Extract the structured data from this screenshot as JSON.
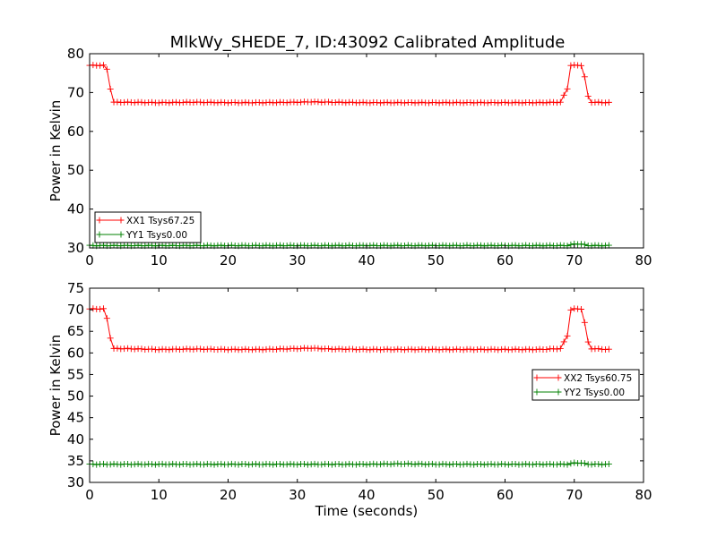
{
  "title": "MlkWy_SHEDE_7, ID:43092 Calibrated Amplitude",
  "xlabel": "Time (seconds)",
  "ylabel": "Power in Kelvin",
  "chart_data": [
    {
      "type": "line",
      "ylabel": "Power in Kelvin",
      "xlabel": "",
      "xlim": [
        0,
        80
      ],
      "ylim": [
        30,
        80
      ],
      "xticks": [
        "0",
        "10",
        "20",
        "30",
        "40",
        "50",
        "60",
        "70",
        "80"
      ],
      "yticks": [
        "30",
        "40",
        "50",
        "60",
        "70",
        "80"
      ],
      "grid": false,
      "legend_position": "lower-left",
      "series": [
        {
          "name": "XX1 Tsys67.25",
          "color": "#ff0000",
          "marker": "+",
          "x": [
            0,
            0.5,
            1,
            1.5,
            2,
            2.5,
            3,
            3.5,
            5,
            10,
            15,
            20,
            25,
            30,
            32,
            35,
            40,
            45,
            50,
            55,
            60,
            65,
            68,
            69,
            69.5,
            70,
            70.5,
            71,
            71.5,
            72,
            72.5,
            75
          ],
          "y": [
            77,
            77,
            77,
            77,
            77,
            76,
            71,
            67.5,
            67.5,
            67.4,
            67.5,
            67.4,
            67.4,
            67.5,
            67.6,
            67.5,
            67.4,
            67.4,
            67.4,
            67.4,
            67.4,
            67.4,
            67.5,
            71,
            77,
            77,
            77,
            77,
            74,
            69,
            67.5,
            67.4
          ]
        },
        {
          "name": "YY1 Tsys0.00",
          "color": "#008000",
          "marker": "+",
          "x": [
            0,
            5,
            10,
            15,
            20,
            25,
            30,
            35,
            40,
            45,
            50,
            55,
            60,
            65,
            69,
            70,
            71,
            72,
            75
          ],
          "y": [
            30.6,
            30.6,
            30.6,
            30.6,
            30.6,
            30.6,
            30.6,
            30.6,
            30.6,
            30.6,
            30.6,
            30.6,
            30.6,
            30.6,
            30.6,
            31.0,
            31.0,
            30.6,
            30.6
          ]
        }
      ]
    },
    {
      "type": "line",
      "ylabel": "Power in Kelvin",
      "xlabel": "Time (seconds)",
      "xlim": [
        0,
        80
      ],
      "ylim": [
        30,
        75
      ],
      "xticks": [
        "0",
        "10",
        "20",
        "30",
        "40",
        "50",
        "60",
        "70",
        "80"
      ],
      "yticks": [
        "30",
        "35",
        "40",
        "45",
        "50",
        "55",
        "60",
        "65",
        "70",
        "75"
      ],
      "grid": false,
      "legend_position": "center-right",
      "series": [
        {
          "name": "XX2 Tsys60.75",
          "color": "#ff0000",
          "marker": "+",
          "x": [
            0,
            0.5,
            1,
            1.5,
            2,
            2.5,
            3,
            3.5,
            5,
            10,
            15,
            20,
            25,
            30,
            32,
            35,
            40,
            45,
            50,
            55,
            60,
            65,
            68,
            69,
            69.5,
            70,
            70.5,
            71,
            71.5,
            72,
            72.5,
            75
          ],
          "y": [
            70.2,
            70.2,
            70.2,
            70.2,
            70.2,
            68,
            63.5,
            61,
            61,
            60.8,
            60.9,
            60.8,
            60.8,
            61,
            61.1,
            60.9,
            60.8,
            60.8,
            60.8,
            60.8,
            60.8,
            60.8,
            61,
            64,
            70,
            70.2,
            70.2,
            70.2,
            67,
            62.5,
            61,
            60.8
          ]
        },
        {
          "name": "YY2 Tsys0.00",
          "color": "#008000",
          "marker": "+",
          "x": [
            0,
            5,
            10,
            15,
            20,
            25,
            30,
            35,
            40,
            45,
            50,
            55,
            60,
            65,
            69,
            70,
            71,
            72,
            75
          ],
          "y": [
            34.2,
            34.2,
            34.2,
            34.2,
            34.2,
            34.2,
            34.2,
            34.2,
            34.2,
            34.3,
            34.2,
            34.2,
            34.2,
            34.2,
            34.2,
            34.5,
            34.5,
            34.2,
            34.2
          ]
        }
      ]
    }
  ]
}
